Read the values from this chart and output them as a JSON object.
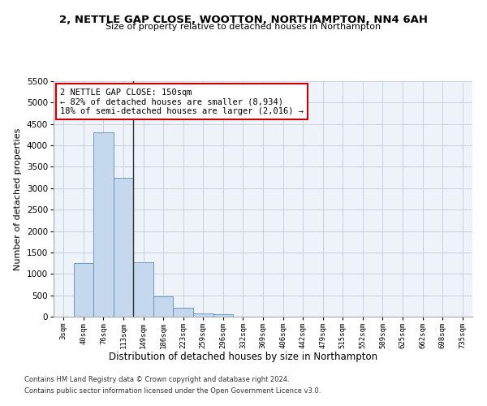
{
  "title": "2, NETTLE GAP CLOSE, WOOTTON, NORTHAMPTON, NN4 6AH",
  "subtitle": "Size of property relative to detached houses in Northampton",
  "xlabel": "Distribution of detached houses by size in Northampton",
  "ylabel": "Number of detached properties",
  "footnote1": "Contains HM Land Registry data © Crown copyright and database right 2024.",
  "footnote2": "Contains public sector information licensed under the Open Government Licence v3.0.",
  "annotation_title": "2 NETTLE GAP CLOSE: 150sqm",
  "annotation_line1": "← 82% of detached houses are smaller (8,934)",
  "annotation_line2": "18% of semi-detached houses are larger (2,016) →",
  "bar_color": "#c5d8ed",
  "bar_edge_color": "#5a8fc0",
  "vline_color": "#333333",
  "annotation_box_color": "#cc0000",
  "categories": [
    "3sqm",
    "40sqm",
    "76sqm",
    "113sqm",
    "149sqm",
    "186sqm",
    "223sqm",
    "259sqm",
    "296sqm",
    "332sqm",
    "369sqm",
    "406sqm",
    "442sqm",
    "479sqm",
    "515sqm",
    "552sqm",
    "589sqm",
    "625sqm",
    "662sqm",
    "698sqm",
    "735sqm"
  ],
  "values": [
    0,
    1250,
    4300,
    3250,
    1280,
    480,
    200,
    80,
    60,
    0,
    0,
    0,
    0,
    0,
    0,
    0,
    0,
    0,
    0,
    0,
    0
  ],
  "ylim": [
    0,
    5500
  ],
  "yticks": [
    0,
    500,
    1000,
    1500,
    2000,
    2500,
    3000,
    3500,
    4000,
    4500,
    5000,
    5500
  ],
  "vline_x_index": 3.5,
  "bg_color": "#eef2f9",
  "grid_color": "#c8d0e0",
  "footnote_color": "#333333"
}
